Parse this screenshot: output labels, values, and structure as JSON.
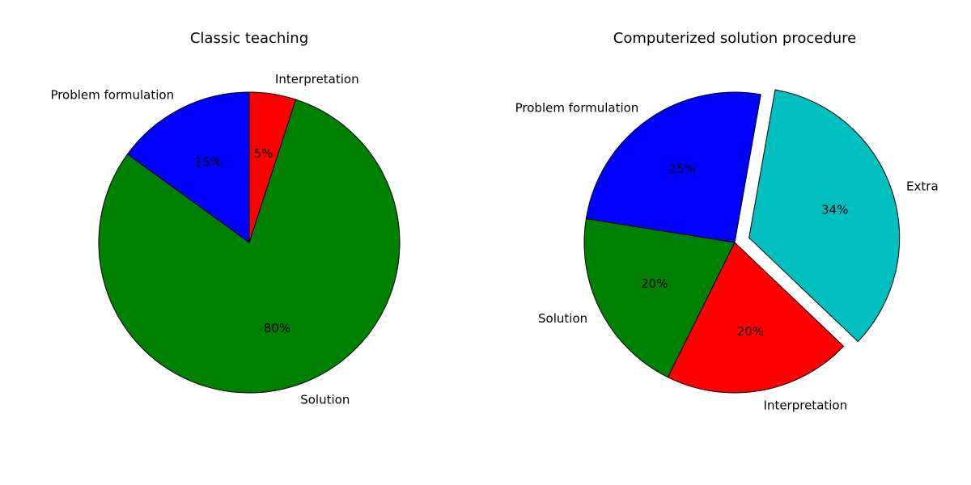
{
  "chart_data": [
    {
      "type": "pie",
      "title": "Classic teaching",
      "start_angle": 90,
      "direction": "counterclockwise",
      "slices": [
        {
          "label": "Problem formulation",
          "value": 15,
          "pct_label": "15%",
          "color": "#0000ff",
          "explode": 0
        },
        {
          "label": "Solution",
          "value": 80,
          "pct_label": "80%",
          "color": "#008000",
          "explode": 0
        },
        {
          "label": "Interpretation",
          "value": 5,
          "pct_label": "5%",
          "color": "#ff0000",
          "explode": 0
        }
      ]
    },
    {
      "type": "pie",
      "title": "Computerized solution procedure",
      "start_angle": 80,
      "direction": "counterclockwise",
      "slices": [
        {
          "label": "Problem formulation",
          "value": 25,
          "pct_label": "25%",
          "color": "#0000ff",
          "explode": 0
        },
        {
          "label": "Solution",
          "value": 20,
          "pct_label": "20%",
          "color": "#008000",
          "explode": 0
        },
        {
          "label": "Interpretation",
          "value": 20,
          "pct_label": "20%",
          "color": "#ff0000",
          "explode": 0
        },
        {
          "label": "Extra",
          "value": 34,
          "pct_label": "34%",
          "color": "#00bfbf",
          "explode": 0.1
        }
      ]
    }
  ]
}
